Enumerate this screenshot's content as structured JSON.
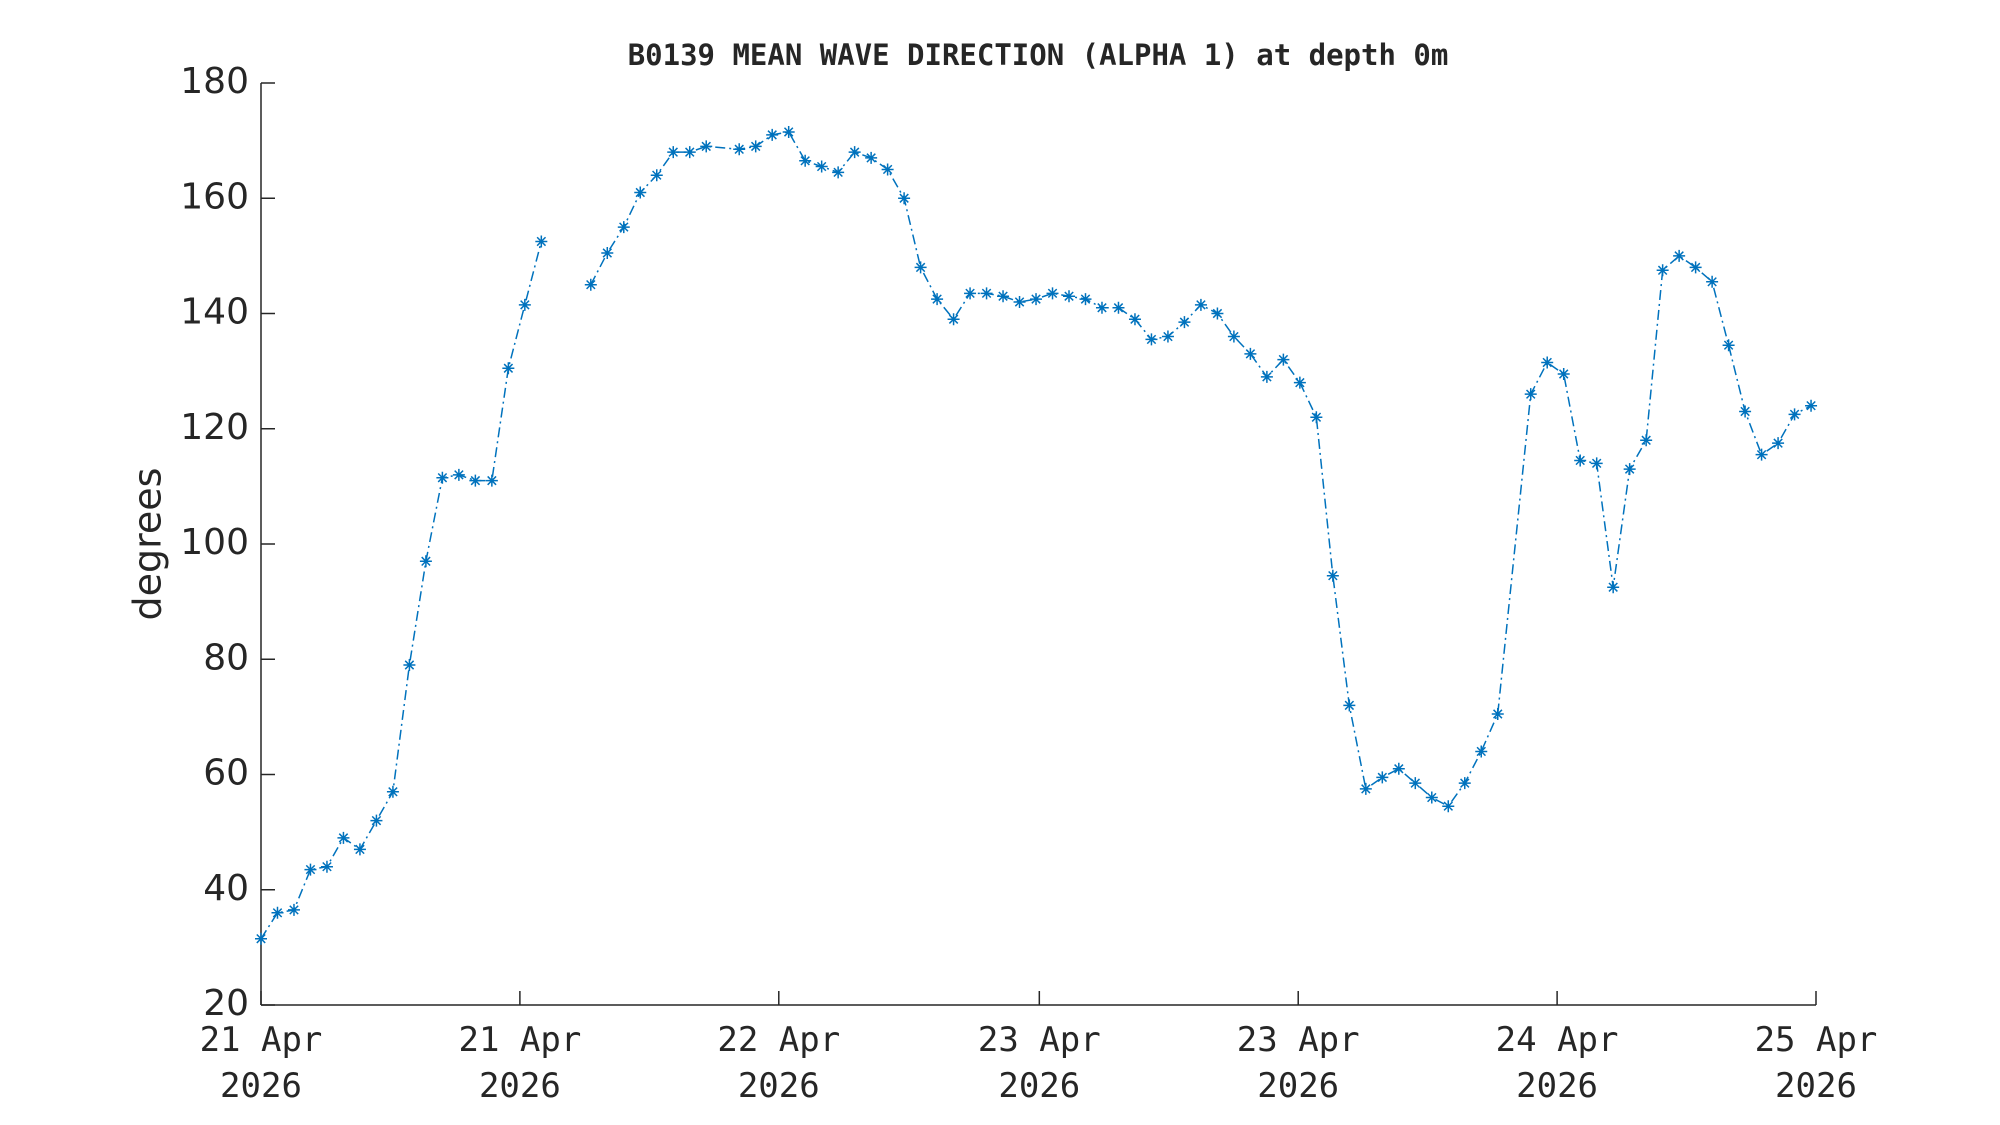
{
  "chart_data": {
    "type": "line",
    "title": "B0139 MEAN WAVE DIRECTION (ALPHA 1) at depth 0m",
    "y_label": "degrees",
    "x": [
      0,
      1,
      2,
      3,
      4,
      5,
      6,
      7,
      8,
      9,
      10,
      11,
      12,
      13,
      14,
      15,
      16,
      17,
      18,
      19,
      20,
      21,
      22,
      23,
      24,
      25,
      26,
      27,
      29,
      30,
      31,
      32,
      33,
      34,
      35,
      36,
      37,
      38,
      39,
      40,
      41,
      42,
      43,
      44,
      45,
      46,
      47,
      48,
      49,
      50,
      51,
      52,
      53,
      54,
      55,
      56,
      57,
      58,
      59,
      60,
      61,
      62,
      63,
      64,
      65,
      66,
      67,
      68,
      69,
      70,
      71,
      72,
      73,
      74,
      75,
      77,
      78,
      79,
      80,
      81,
      82,
      83,
      84,
      85,
      86,
      87,
      88,
      89,
      90,
      91,
      92,
      93,
      94
    ],
    "series": [
      {
        "name": "B0139",
        "color": "#0072bd",
        "values": [
          31.5,
          36,
          36.5,
          43.5,
          44,
          49,
          47,
          52,
          57,
          79,
          97,
          111.5,
          112,
          111,
          111,
          130.5,
          141.5,
          152.5,
          null,
          null,
          145,
          150.5,
          155,
          161,
          164,
          168,
          168,
          169,
          168.5,
          169,
          171,
          171.5,
          166.5,
          165.5,
          164.5,
          168,
          167,
          165,
          160,
          148,
          142.5,
          139,
          143.5,
          143.5,
          143,
          142,
          142.5,
          143.5,
          143,
          142.5,
          141,
          141,
          139,
          135.5,
          136,
          138.5,
          141.5,
          140,
          136,
          133,
          129,
          132,
          128,
          122,
          94.5,
          72,
          57.5,
          59.5,
          61,
          58.5,
          56,
          54.5,
          58.5,
          64,
          70.5,
          126,
          131.5,
          129.5,
          114.5,
          114,
          92.5,
          113,
          118,
          147.5,
          150,
          148,
          145.5,
          134.5,
          123,
          115.5,
          117.5,
          122.5,
          124
        ]
      }
    ],
    "xlim": [
      0,
      94.3
    ],
    "xticks": [
      {
        "value": 0,
        "label": "21 Apr 2026"
      },
      {
        "value": 15.7,
        "label": "21 Apr 2026"
      },
      {
        "value": 31.4,
        "label": "22 Apr 2026"
      },
      {
        "value": 47.2,
        "label": "23 Apr 2026"
      },
      {
        "value": 62.9,
        "label": "23 Apr 2026"
      },
      {
        "value": 78.6,
        "label": "24 Apr 2026"
      },
      {
        "value": 94.3,
        "label": "25 Apr 2026"
      }
    ],
    "ylim": [
      20,
      180
    ],
    "yticks": [
      20,
      40,
      60,
      80,
      100,
      120,
      140,
      160,
      180
    ],
    "grid": false
  }
}
